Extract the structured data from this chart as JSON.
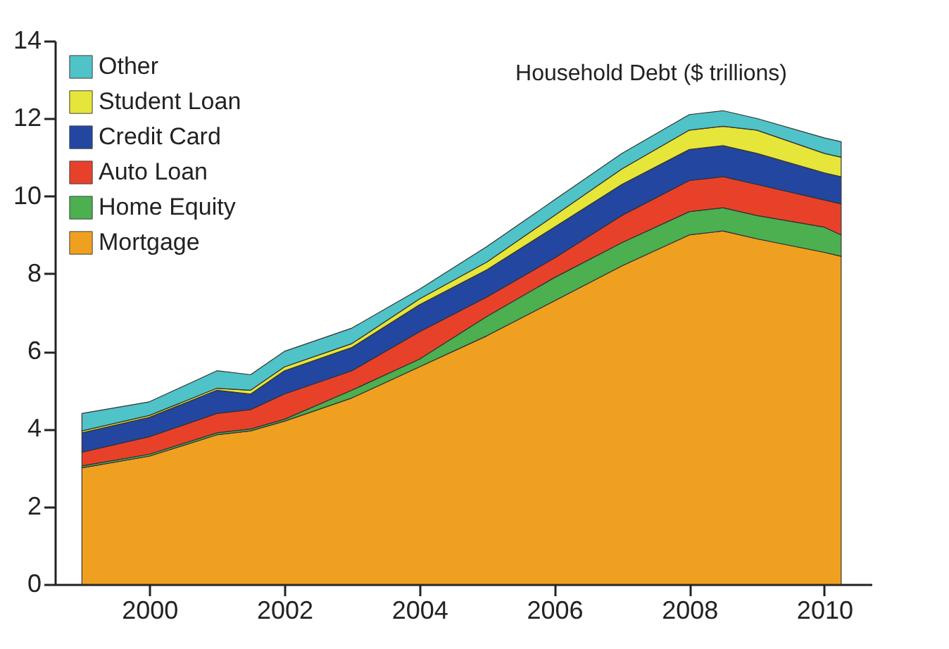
{
  "chart_data": {
    "type": "area",
    "title": "Household Debt ($ trillions)",
    "stacked": true,
    "x": [
      1999,
      2000,
      2001,
      2001.5,
      2002,
      2003,
      2004,
      2005,
      2006,
      2007,
      2008,
      2008.5,
      2009,
      2010,
      2010.25
    ],
    "series": [
      {
        "name": "Mortgage",
        "color": "#f0a020",
        "values": [
          3.0,
          3.3,
          3.85,
          3.95,
          4.2,
          4.8,
          5.6,
          6.4,
          7.3,
          8.2,
          9.0,
          9.1,
          8.9,
          8.55,
          8.45
        ]
      },
      {
        "name": "Home Equity",
        "color": "#4caf50",
        "values": [
          0.05,
          0.05,
          0.05,
          0.05,
          0.05,
          0.2,
          0.2,
          0.5,
          0.6,
          0.6,
          0.6,
          0.6,
          0.6,
          0.65,
          0.55
        ]
      },
      {
        "name": "Auto Loan",
        "color": "#e8412a",
        "values": [
          0.35,
          0.45,
          0.5,
          0.5,
          0.65,
          0.5,
          0.7,
          0.5,
          0.5,
          0.7,
          0.8,
          0.8,
          0.8,
          0.7,
          0.8
        ]
      },
      {
        "name": "Credit Card",
        "color": "#2346a0",
        "values": [
          0.5,
          0.5,
          0.6,
          0.4,
          0.6,
          0.6,
          0.7,
          0.7,
          0.8,
          0.8,
          0.8,
          0.8,
          0.8,
          0.7,
          0.7
        ]
      },
      {
        "name": "Student Loan",
        "color": "#e6e53a",
        "values": [
          0.05,
          0.05,
          0.05,
          0.1,
          0.1,
          0.1,
          0.15,
          0.2,
          0.3,
          0.4,
          0.5,
          0.5,
          0.6,
          0.5,
          0.5
        ]
      },
      {
        "name": "Other",
        "color": "#4fc3c8",
        "values": [
          0.45,
          0.35,
          0.45,
          0.4,
          0.4,
          0.4,
          0.25,
          0.4,
          0.4,
          0.4,
          0.4,
          0.4,
          0.3,
          0.4,
          0.4
        ]
      }
    ],
    "xlim": [
      1998.6,
      2010.7
    ],
    "xticks": [
      2000,
      2002,
      2004,
      2006,
      2008,
      2010
    ],
    "ylim": [
      0,
      14
    ],
    "yticks": [
      0,
      2,
      4,
      6,
      8,
      10,
      12,
      14
    ],
    "legend": "top left",
    "grid": false
  }
}
